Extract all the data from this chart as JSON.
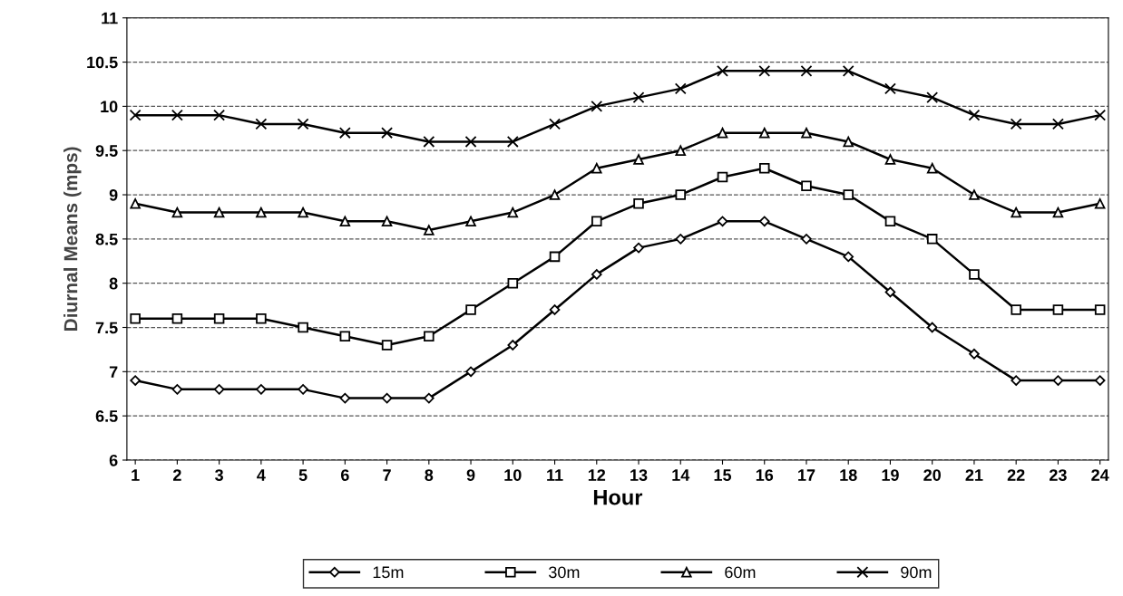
{
  "chart_data": {
    "type": "line",
    "xlabel": "Hour",
    "ylabel": "Diurnal Means (mps)",
    "categories": [
      "1",
      "2",
      "3",
      "4",
      "5",
      "6",
      "7",
      "8",
      "9",
      "10",
      "11",
      "12",
      "13",
      "14",
      "15",
      "16",
      "17",
      "18",
      "19",
      "20",
      "21",
      "22",
      "23",
      "24"
    ],
    "series": [
      {
        "name": "15m",
        "color": "#000000",
        "marker": "diamond",
        "values": [
          6.9,
          6.8,
          6.8,
          6.8,
          6.8,
          6.7,
          6.7,
          6.7,
          7.0,
          7.3,
          7.7,
          8.1,
          8.4,
          8.5,
          8.7,
          8.7,
          8.5,
          8.3,
          7.9,
          7.5,
          7.2,
          6.9,
          6.9,
          6.9
        ]
      },
      {
        "name": "30m",
        "color": "#000000",
        "marker": "square",
        "values": [
          7.6,
          7.6,
          7.6,
          7.6,
          7.5,
          7.4,
          7.3,
          7.4,
          7.7,
          8.0,
          8.3,
          8.7,
          8.9,
          9.0,
          9.2,
          9.3,
          9.1,
          9.0,
          8.7,
          8.5,
          8.1,
          7.7,
          7.7,
          7.7
        ]
      },
      {
        "name": "60m",
        "color": "#000000",
        "marker": "triangle",
        "values": [
          8.9,
          8.8,
          8.8,
          8.8,
          8.8,
          8.7,
          8.7,
          8.6,
          8.7,
          8.8,
          9.0,
          9.3,
          9.4,
          9.5,
          9.7,
          9.7,
          9.7,
          9.6,
          9.4,
          9.3,
          9.0,
          8.8,
          8.8,
          8.9
        ]
      },
      {
        "name": "90m",
        "color": "#000000",
        "marker": "cross",
        "values": [
          9.9,
          9.9,
          9.9,
          9.8,
          9.8,
          9.7,
          9.7,
          9.6,
          9.6,
          9.6,
          9.8,
          10.0,
          10.1,
          10.2,
          10.4,
          10.4,
          10.4,
          10.4,
          10.2,
          10.1,
          9.9,
          9.8,
          9.8,
          9.9
        ]
      }
    ],
    "ylim": [
      6,
      11
    ],
    "yticks": [
      6,
      6.5,
      7,
      7.5,
      8,
      8.5,
      9,
      9.5,
      10,
      10.5,
      11
    ],
    "grid": "y",
    "line_style": "solid",
    "legend": "bottom"
  }
}
